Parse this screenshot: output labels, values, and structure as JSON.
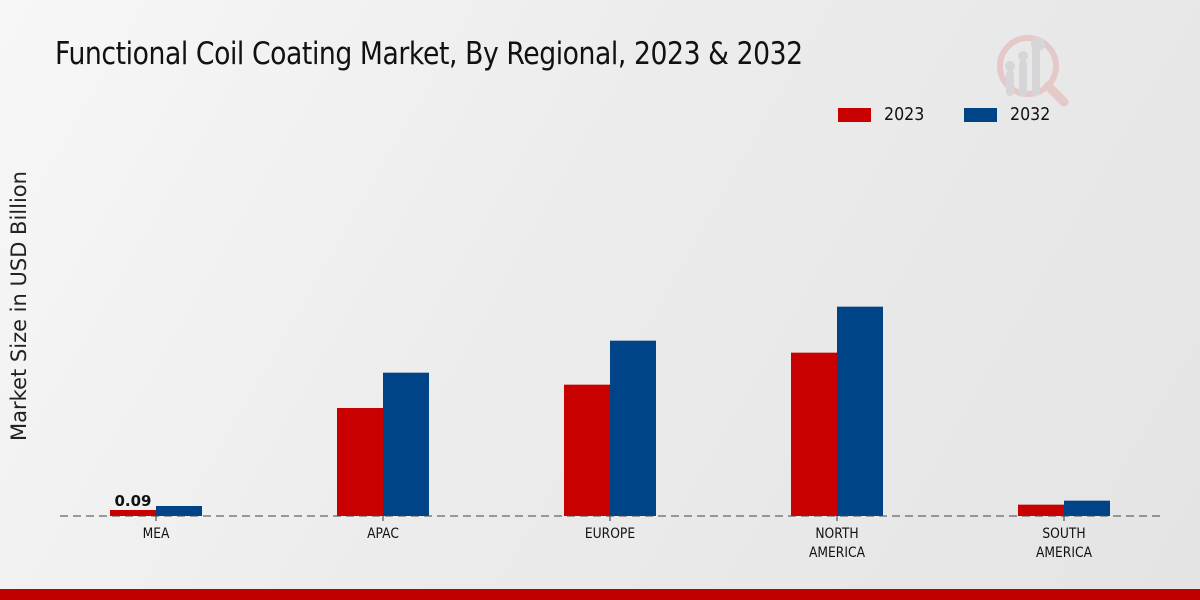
{
  "chart_data": {
    "type": "bar",
    "title": "Functional Coil Coating Market, By Regional, 2023 & 2032",
    "xlabel": "",
    "ylabel": "Market Size in USD Billion",
    "categories": [
      [
        "MEA"
      ],
      [
        "APAC"
      ],
      [
        "EUROPE"
      ],
      [
        "NORTH",
        "AMERICA"
      ],
      [
        "SOUTH",
        "AMERICA"
      ]
    ],
    "series": [
      {
        "name": "2023",
        "color": "#c80000",
        "values": [
          0.09,
          1.62,
          1.97,
          2.45,
          0.17
        ]
      },
      {
        "name": "2032",
        "color": "#004488",
        "values": [
          0.15,
          2.15,
          2.63,
          3.14,
          0.23
        ]
      }
    ],
    "data_labels": [
      {
        "series": 0,
        "index": 0,
        "text": "0.09"
      }
    ],
    "ylim": [
      0,
      3.5
    ],
    "grid": false,
    "legend": "top-right"
  },
  "colors": {
    "footer_bar": "#c00000",
    "background": "#e8e8e8"
  }
}
